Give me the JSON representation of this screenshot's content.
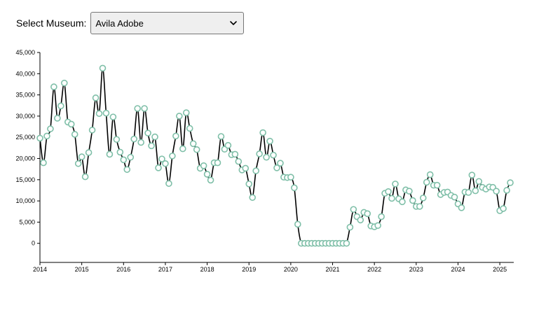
{
  "controls": {
    "museum_label": "Select Museum:",
    "selected_museum": "Avila Adobe"
  },
  "chart_data": {
    "type": "line",
    "title": "",
    "xlabel": "",
    "ylabel": "",
    "x_range": [
      "2014-01",
      "2025-05"
    ],
    "ylim": [
      -4500,
      45000
    ],
    "y_ticks": [
      "0",
      "5,000",
      "10,000",
      "15,000",
      "20,000",
      "25,000",
      "30,000",
      "35,000",
      "40,000",
      "45,000"
    ],
    "x_ticks": [
      "2014",
      "2015",
      "2016",
      "2017",
      "2018",
      "2019",
      "2020",
      "2021",
      "2022",
      "2023",
      "2024",
      "2025"
    ],
    "grid": false,
    "curve": "smoothed",
    "line_color": "#000000",
    "marker_color": "#7fbfa8",
    "points": [
      [
        "2014-01",
        24800
      ],
      [
        "2014-02",
        19000
      ],
      [
        "2014-03",
        25300
      ],
      [
        "2014-04",
        27000
      ],
      [
        "2014-05",
        36900
      ],
      [
        "2014-06",
        29500
      ],
      [
        "2014-07",
        32400
      ],
      [
        "2014-08",
        37800
      ],
      [
        "2014-09",
        28600
      ],
      [
        "2014-10",
        28100
      ],
      [
        "2014-11",
        25700
      ],
      [
        "2014-12",
        18800
      ],
      [
        "2015-01",
        20400
      ],
      [
        "2015-02",
        15700
      ],
      [
        "2015-03",
        21400
      ],
      [
        "2015-04",
        26700
      ],
      [
        "2015-05",
        34300
      ],
      [
        "2015-06",
        30600
      ],
      [
        "2015-07",
        41300
      ],
      [
        "2015-08",
        30700
      ],
      [
        "2015-09",
        21000
      ],
      [
        "2015-10",
        29800
      ],
      [
        "2015-11",
        24500
      ],
      [
        "2015-12",
        21500
      ],
      [
        "2016-01",
        19700
      ],
      [
        "2016-02",
        17400
      ],
      [
        "2016-03",
        20300
      ],
      [
        "2016-04",
        24600
      ],
      [
        "2016-05",
        31800
      ],
      [
        "2016-06",
        23800
      ],
      [
        "2016-07",
        31800
      ],
      [
        "2016-08",
        26000
      ],
      [
        "2016-09",
        23000
      ],
      [
        "2016-10",
        25100
      ],
      [
        "2016-11",
        17800
      ],
      [
        "2016-12",
        19900
      ],
      [
        "2017-01",
        18800
      ],
      [
        "2017-02",
        14100
      ],
      [
        "2017-03",
        20600
      ],
      [
        "2017-04",
        25300
      ],
      [
        "2017-05",
        30000
      ],
      [
        "2017-06",
        22300
      ],
      [
        "2017-07",
        30800
      ],
      [
        "2017-08",
        27100
      ],
      [
        "2017-09",
        23500
      ],
      [
        "2017-10",
        22100
      ],
      [
        "2017-11",
        17700
      ],
      [
        "2017-12",
        18300
      ],
      [
        "2018-01",
        16300
      ],
      [
        "2018-02",
        14900
      ],
      [
        "2018-03",
        19000
      ],
      [
        "2018-04",
        19000
      ],
      [
        "2018-05",
        25200
      ],
      [
        "2018-06",
        22200
      ],
      [
        "2018-07",
        23100
      ],
      [
        "2018-08",
        20900
      ],
      [
        "2018-09",
        21000
      ],
      [
        "2018-10",
        19300
      ],
      [
        "2018-11",
        17300
      ],
      [
        "2018-12",
        17700
      ],
      [
        "2019-01",
        14000
      ],
      [
        "2019-02",
        10800
      ],
      [
        "2019-03",
        17100
      ],
      [
        "2019-04",
        21100
      ],
      [
        "2019-05",
        26100
      ],
      [
        "2019-06",
        20300
      ],
      [
        "2019-07",
        24100
      ],
      [
        "2019-08",
        20800
      ],
      [
        "2019-09",
        17800
      ],
      [
        "2019-10",
        18900
      ],
      [
        "2019-11",
        15600
      ],
      [
        "2019-12",
        15500
      ],
      [
        "2020-01",
        15600
      ],
      [
        "2020-02",
        13100
      ],
      [
        "2020-03",
        4500
      ],
      [
        "2020-04",
        0
      ],
      [
        "2020-05",
        0
      ],
      [
        "2020-06",
        0
      ],
      [
        "2020-07",
        0
      ],
      [
        "2020-08",
        0
      ],
      [
        "2020-09",
        0
      ],
      [
        "2020-10",
        0
      ],
      [
        "2020-11",
        0
      ],
      [
        "2020-12",
        0
      ],
      [
        "2021-01",
        0
      ],
      [
        "2021-02",
        0
      ],
      [
        "2021-03",
        0
      ],
      [
        "2021-04",
        0
      ],
      [
        "2021-05",
        0
      ],
      [
        "2021-06",
        3800
      ],
      [
        "2021-07",
        8000
      ],
      [
        "2021-08",
        6300
      ],
      [
        "2021-09",
        5500
      ],
      [
        "2021-10",
        7300
      ],
      [
        "2021-11",
        7000
      ],
      [
        "2021-12",
        4100
      ],
      [
        "2022-01",
        3900
      ],
      [
        "2022-02",
        4200
      ],
      [
        "2022-03",
        6300
      ],
      [
        "2022-04",
        11800
      ],
      [
        "2022-05",
        12200
      ],
      [
        "2022-06",
        10600
      ],
      [
        "2022-07",
        14000
      ],
      [
        "2022-08",
        10500
      ],
      [
        "2022-09",
        9800
      ],
      [
        "2022-10",
        12600
      ],
      [
        "2022-11",
        12300
      ],
      [
        "2022-12",
        10100
      ],
      [
        "2023-01",
        8700
      ],
      [
        "2023-02",
        8700
      ],
      [
        "2023-03",
        10700
      ],
      [
        "2023-04",
        14400
      ],
      [
        "2023-05",
        16200
      ],
      [
        "2023-06",
        13700
      ],
      [
        "2023-07",
        13700
      ],
      [
        "2023-08",
        11500
      ],
      [
        "2023-09",
        12000
      ],
      [
        "2023-10",
        12100
      ],
      [
        "2023-11",
        11300
      ],
      [
        "2023-12",
        10900
      ],
      [
        "2024-01",
        9300
      ],
      [
        "2024-02",
        8400
      ],
      [
        "2024-03",
        12100
      ],
      [
        "2024-04",
        12000
      ],
      [
        "2024-05",
        16100
      ],
      [
        "2024-06",
        12400
      ],
      [
        "2024-07",
        14600
      ],
      [
        "2024-08",
        13200
      ],
      [
        "2024-09",
        12800
      ],
      [
        "2024-10",
        13300
      ],
      [
        "2024-11",
        13200
      ],
      [
        "2024-12",
        12300
      ],
      [
        "2025-01",
        7700
      ],
      [
        "2025-02",
        8200
      ],
      [
        "2025-03",
        12500
      ],
      [
        "2025-04",
        14300
      ]
    ]
  }
}
